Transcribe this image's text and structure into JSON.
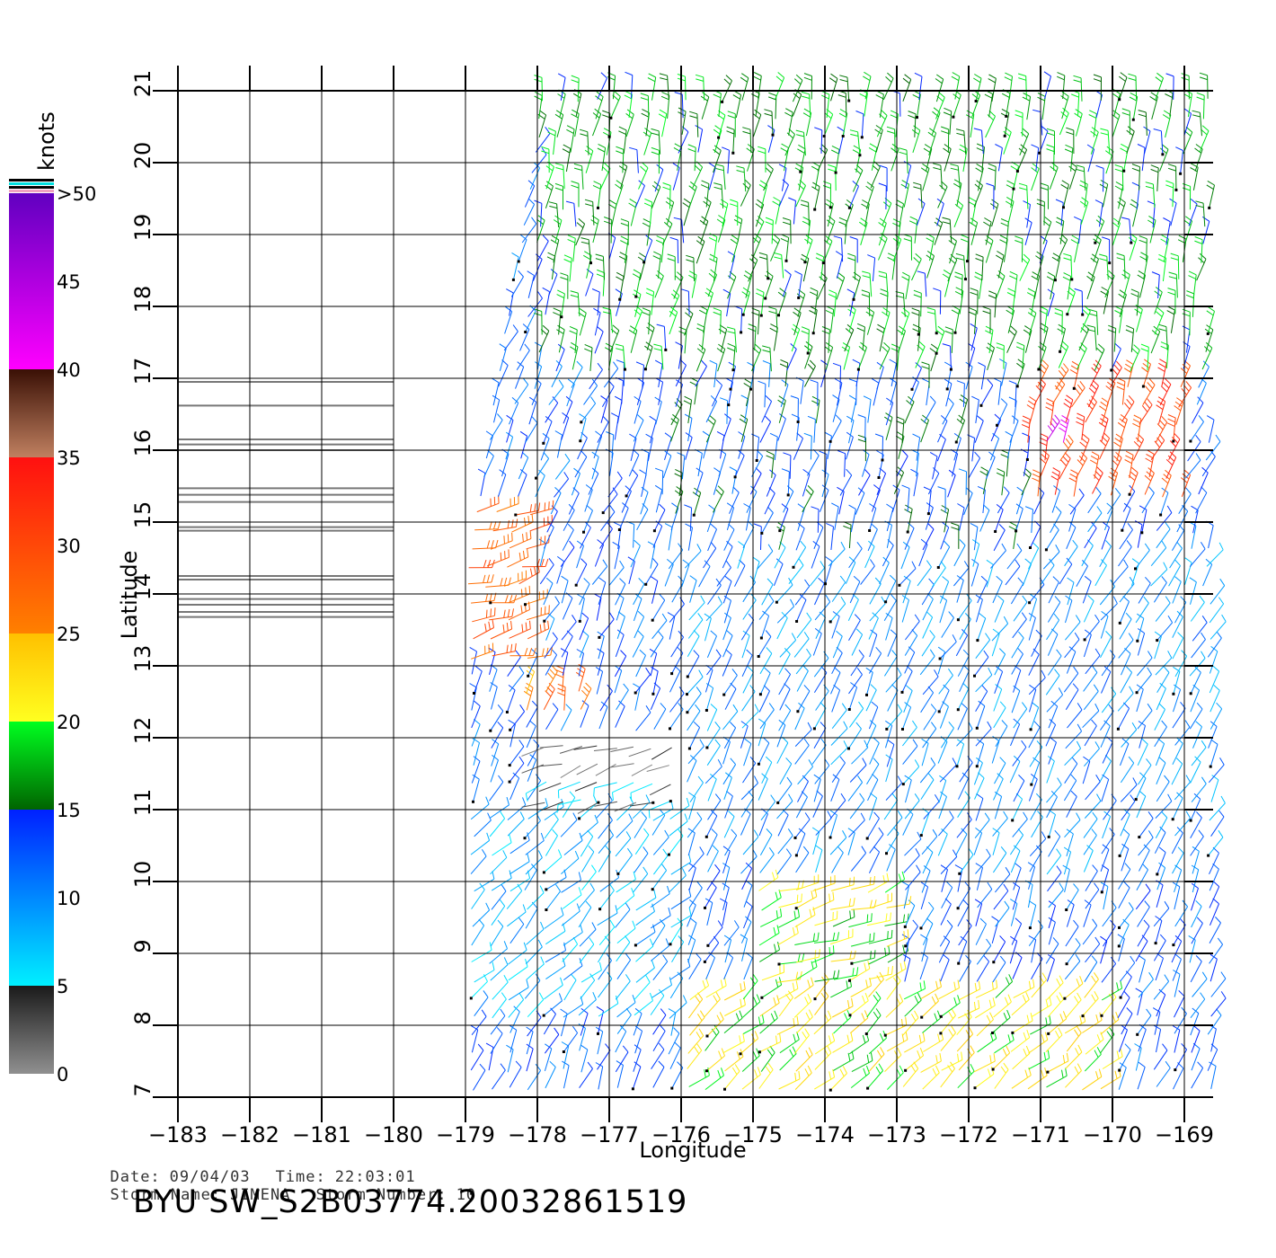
{
  "chart_data": {
    "type": "wind-barb-map",
    "xlabel": "Longitude",
    "ylabel": "Latitude",
    "xlim": [
      -183,
      -168.6
    ],
    "ylim": [
      7,
      21
    ],
    "x_ticks": [
      -183,
      -182,
      -181,
      -180,
      -179,
      -178,
      -177,
      -176,
      -175,
      -174,
      -173,
      -172,
      -171,
      -170,
      -169
    ],
    "x_tick_labels": [
      "−183",
      "−182",
      "−181",
      "−180",
      "−179",
      "−178",
      "−177",
      "−176",
      "−175",
      "−174",
      "−173",
      "−172",
      "−171",
      "−170",
      "−169"
    ],
    "y_ticks": [
      7,
      8,
      9,
      10,
      11,
      12,
      13,
      14,
      15,
      16,
      17,
      18,
      19,
      20,
      21
    ],
    "grid": true,
    "colorbar": {
      "title": "knots",
      "labels": [
        "0",
        "5",
        "10",
        "15",
        "20",
        "25",
        "30",
        "35",
        "40",
        "45",
        ">50"
      ],
      "bands": [
        {
          "from": 0,
          "to": 5,
          "colors": [
            "#909090",
            "#1a1a1a"
          ]
        },
        {
          "from": 5,
          "to": 15,
          "colors": [
            "#00f0ff",
            "#0020ff"
          ]
        },
        {
          "from": 15,
          "to": 20,
          "colors": [
            "#006400",
            "#00ff20"
          ]
        },
        {
          "from": 20,
          "to": 25,
          "colors": [
            "#ffff20",
            "#ffc000"
          ]
        },
        {
          "from": 25,
          "to": 35,
          "colors": [
            "#ff8000",
            "#ff1010"
          ]
        },
        {
          "from": 35,
          "to": 40,
          "colors": [
            "#c08060",
            "#3a1005"
          ]
        },
        {
          "from": 40,
          "to": 50,
          "colors": [
            "#ff00ff",
            "#6000c0"
          ]
        }
      ]
    },
    "swath": {
      "lon_min": -179,
      "lon_max": -168.6,
      "lat_min": 7,
      "lat_max": 21,
      "left_edge_lat21": -178,
      "left_edge_lat14": -179.1
    },
    "wind_regions": [
      {
        "lon": [
          -178,
          -168.6
        ],
        "lat": [
          17,
          21
        ],
        "speed": 17,
        "dir_deg": 80
      },
      {
        "lon": [
          -177,
          -171
        ],
        "lat": [
          14.5,
          17
        ],
        "speed": 13,
        "dir_deg": 75
      },
      {
        "lon": [
          -171.2,
          -169
        ],
        "lat": [
          15.2,
          17
        ],
        "speed": 31,
        "dir_deg": 70
      },
      {
        "lon": [
          -171,
          -170.5
        ],
        "lat": [
          15.9,
          16.3
        ],
        "speed": 43,
        "dir_deg": 70
      },
      {
        "lon": [
          -179,
          -178
        ],
        "lat": [
          13,
          15.2
        ],
        "speed": 28,
        "dir_deg": 15
      },
      {
        "lon": [
          -178.3,
          -177.2
        ],
        "lat": [
          12.2,
          12.8
        ],
        "speed": 27,
        "dir_deg": 75
      },
      {
        "lon": [
          -178,
          -176
        ],
        "lat": [
          10.5,
          12
        ],
        "speed": 3,
        "dir_deg": 200
      },
      {
        "lon": [
          -175,
          -173
        ],
        "lat": [
          8.5,
          10
        ],
        "speed": 20,
        "dir_deg": 20
      },
      {
        "lon": [
          -176,
          -170
        ],
        "lat": [
          7.1,
          8.5
        ],
        "speed": 21,
        "dir_deg": 40
      },
      {
        "lon": [
          -176,
          -168.6
        ],
        "lat": [
          10,
          14.5
        ],
        "speed": 10,
        "dir_deg": 60
      },
      {
        "lon": [
          -179,
          -176
        ],
        "lat": [
          8,
          11
        ],
        "speed": 8,
        "dir_deg": 45
      }
    ],
    "ambiguity_lines_lat": [
      16.95,
      16.62,
      16.15,
      16.08,
      16.0,
      15.47,
      15.38,
      15.28,
      14.93,
      14.88,
      14.25,
      14.2,
      13.93,
      13.85,
      13.75,
      13.68
    ]
  },
  "footer": {
    "date_label": "Date:",
    "date_value": "09/04/03",
    "time_label": "Time:",
    "time_value": "22:03:01",
    "storm_name_label": "Storm Name:",
    "storm_name_value": "JIMENA",
    "storm_number_label": "Storm Number:",
    "storm_number_value": "10",
    "product_id": "BYU SW_S2B03774.20032861519"
  }
}
